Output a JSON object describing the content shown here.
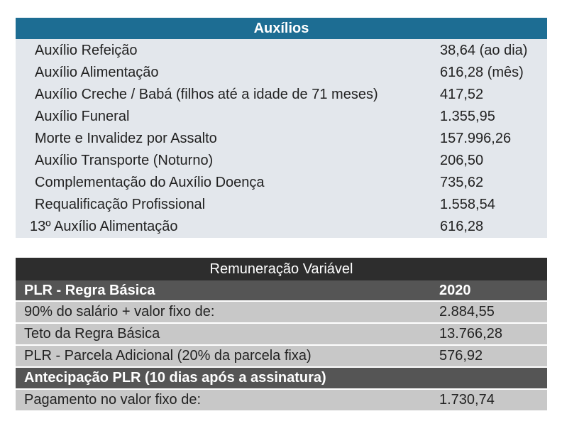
{
  "auxilios": {
    "title": "Auxílios",
    "rows": [
      {
        "label": "Auxílio Refeição",
        "value": "38,64 (ao dia)"
      },
      {
        "label": "Auxílio Alimentação",
        "value": "616,28 (mês)"
      },
      {
        "label": "Auxílio Creche / Babá (filhos até a idade de 71 meses)",
        "value": "417,52"
      },
      {
        "label": "Auxílio Funeral",
        "value": "1.355,95"
      },
      {
        "label": "Morte e Invalidez por Assalto",
        "value": "157.996,26"
      },
      {
        "label": "Auxílio Transporte (Noturno)",
        "value": "206,50"
      },
      {
        "label": "Complementação do Auxílio Doença",
        "value": "735,62"
      },
      {
        "label": "Requalificação Profissional",
        "value": "1.558,54"
      },
      {
        "label": "13º Auxílio Alimentação",
        "value": "616,28"
      }
    ]
  },
  "remuneracao": {
    "title": "Remuneração Variável",
    "plr_section": {
      "label": "PLR - Regra Básica",
      "year": "2020"
    },
    "plr_rows": [
      {
        "label": "90% do salário + valor fixo de:",
        "value": "2.884,55"
      },
      {
        "label": "Teto da Regra Básica",
        "value": "13.766,28"
      },
      {
        "label": "PLR - Parcela Adicional (20% da parcela fixa)",
        "value": "576,92"
      }
    ],
    "antecipacao_section": {
      "label": "Antecipação PLR (10 dias após a assinatura)"
    },
    "antecipacao_rows": [
      {
        "label": "Pagamento no valor fixo de:",
        "value": "1.730,74"
      }
    ]
  }
}
